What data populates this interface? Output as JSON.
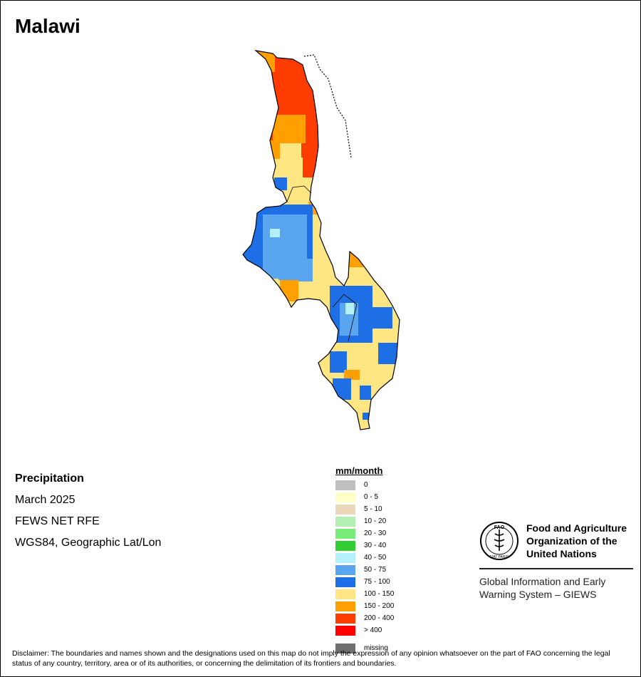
{
  "title": "Malawi",
  "info": {
    "variable": "Precipitation",
    "period": "March 2025",
    "source": "FEWS NET RFE",
    "projection": "WGS84, Geographic Lat/Lon"
  },
  "legend": {
    "title": "mm/month",
    "classes": [
      {
        "label": "0",
        "color": "#c0c0c0"
      },
      {
        "label": "0 - 5",
        "color": "#ffffc8"
      },
      {
        "label": "5 - 10",
        "color": "#ebd7b9"
      },
      {
        "label": "10 - 20",
        "color": "#b4f0b4"
      },
      {
        "label": "20 - 30",
        "color": "#78eb78"
      },
      {
        "label": "30 - 40",
        "color": "#32cd32"
      },
      {
        "label": "40 - 50",
        "color": "#b4f0fa"
      },
      {
        "label": "50 - 75",
        "color": "#5aa5f0"
      },
      {
        "label": "75 - 100",
        "color": "#1e6ee6"
      },
      {
        "label": "100 - 150",
        "color": "#ffe682"
      },
      {
        "label": "150 - 200",
        "color": "#ffa000"
      },
      {
        "label": "200 - 400",
        "color": "#ff3c00"
      },
      {
        "label": "> 400",
        "color": "#ff0000"
      }
    ],
    "missing": {
      "label": "missing",
      "color": "#6e6e6e"
    }
  },
  "fao": {
    "org_line1": "Food and Agriculture",
    "org_line2": "Organization of the",
    "org_line3": "United Nations",
    "logo_letters": "FAO",
    "logo_motto": "FIAT PANIS",
    "giews_line1": "Global Information and Early",
    "giews_line2": "Warning System – GIEWS"
  },
  "disclaimer": "Disclaimer: The boundaries and names shown and the designations used on this map do not imply the expression of any opinion whatsoever on the part of FAO concerning the legal status of any country, territory, area or of its authorities, or concerning the delimitation of its frontiers and boundaries."
}
